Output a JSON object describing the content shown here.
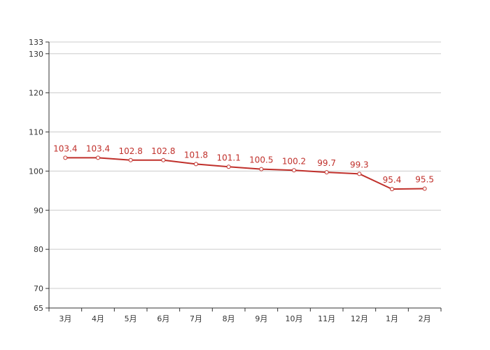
{
  "chart_data": {
    "type": "line",
    "title": "",
    "xlabel": "",
    "ylabel": "",
    "categories": [
      "3月",
      "4月",
      "5月",
      "6月",
      "7月",
      "8月",
      "9月",
      "10月",
      "11月",
      "12月",
      "1月",
      "2月"
    ],
    "series": [
      {
        "values": [
          103.4,
          103.4,
          102.8,
          102.8,
          101.8,
          101.1,
          100.5,
          100.2,
          99.7,
          99.3,
          95.4,
          95.5
        ],
        "color": "#c0302b"
      }
    ],
    "data_labels": [
      "103.4",
      "103.4",
      "102.8",
      "102.8",
      "101.8",
      "101.1",
      "100.5",
      "100.2",
      "99.7",
      "99.3",
      "95.4",
      "95.5"
    ],
    "ylim": [
      65,
      133
    ],
    "yticks": [
      65,
      70,
      80,
      90,
      100,
      110,
      120,
      130,
      133
    ],
    "ytick_labels": [
      "65",
      "70",
      "80",
      "90",
      "100",
      "110",
      "120",
      "130",
      "133"
    ],
    "grid": true,
    "legend": "none",
    "colors": {
      "line": "#c0302b",
      "label": "#c0302b",
      "grid": "#cccccc",
      "axis": "#333333",
      "marker_fill": "#ffffff"
    }
  }
}
